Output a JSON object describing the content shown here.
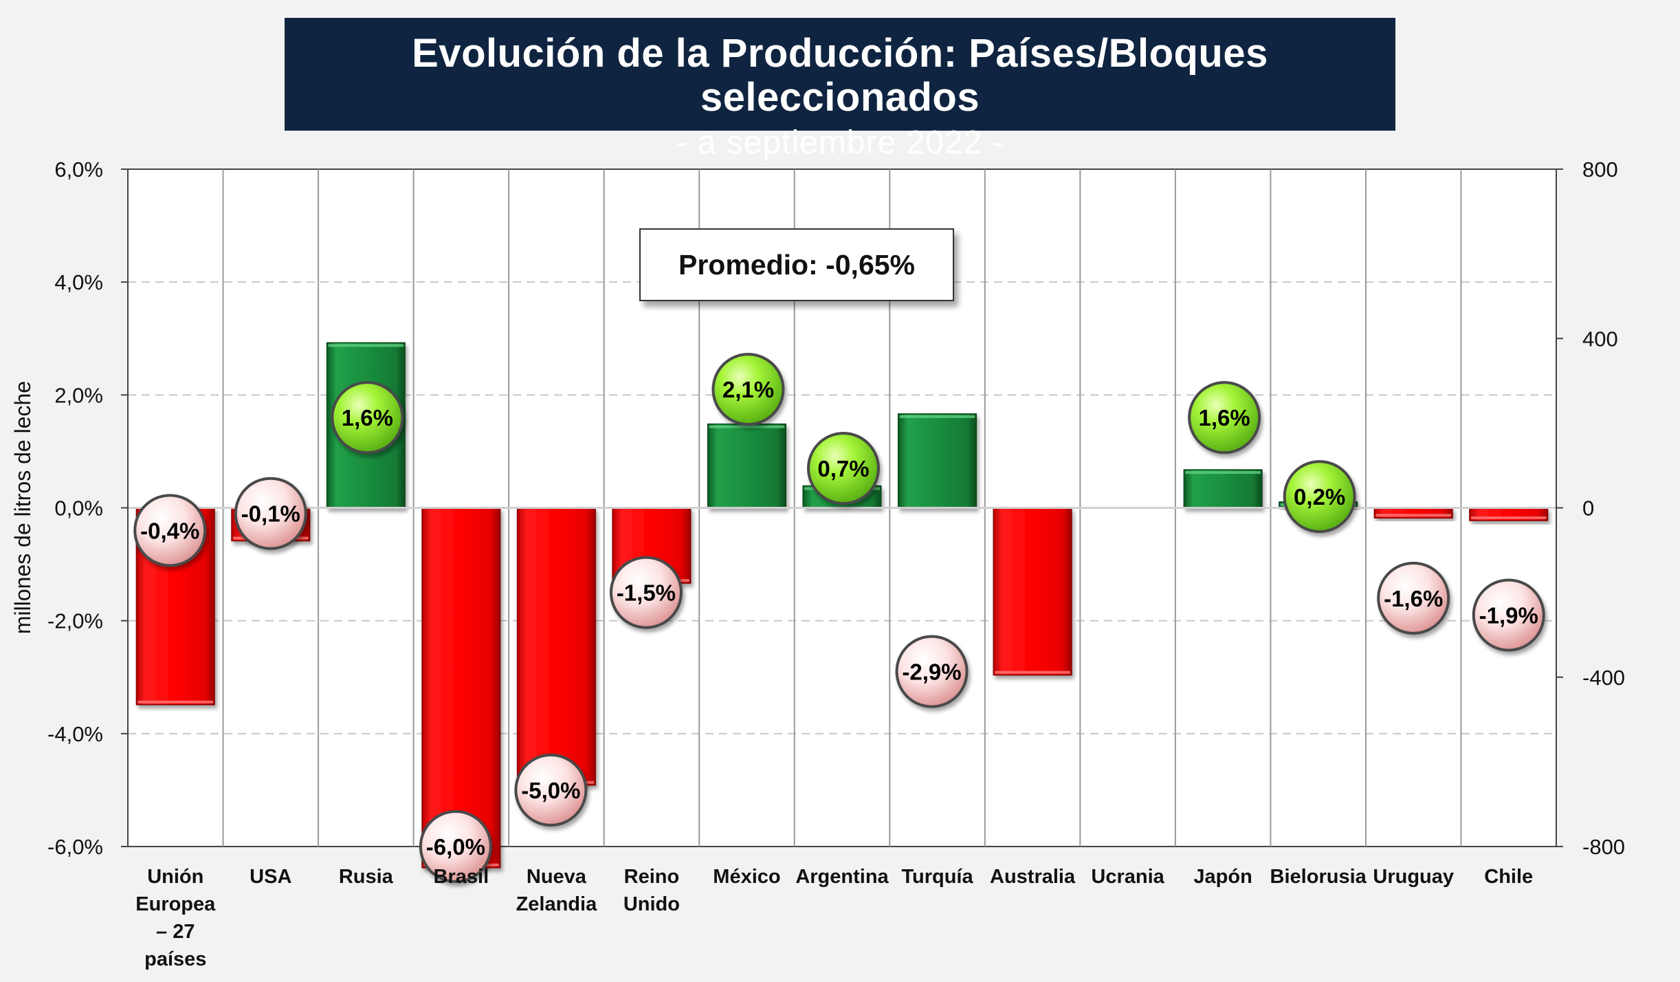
{
  "title": "Evolución de la Producción: Países/Bloques seleccionados",
  "subtitle": "- a septiembre 2022 -",
  "promedio": "Promedio: -0,65%",
  "colors": {
    "positive": "#1a8a3c",
    "negative": "#ee0000",
    "bubble_positive": "#8ef02a",
    "bubble_negative": "#fde0e0",
    "title_bg": "#0f2440"
  },
  "chart_data": {
    "type": "bar",
    "title": "Evolución de la Producción: Países/Bloques seleccionados",
    "subtitle": "- a septiembre 2022 -",
    "ylabel": "millones de litros de leche",
    "y_left_range": [
      -6,
      6
    ],
    "y_left_ticks": [
      "6,0%",
      "4,0%",
      "2,0%",
      "0,0%",
      "-2,0%",
      "-4,0%",
      "-6,0%"
    ],
    "y_left_tick_values": [
      6,
      4,
      2,
      0,
      -2,
      -4,
      -6
    ],
    "y_right_range": [
      -800,
      800
    ],
    "y_right_ticks": [
      "800",
      "400",
      "0",
      "-400",
      "-800"
    ],
    "y_right_tick_values": [
      800,
      400,
      0,
      -400,
      -800
    ],
    "grid": "horizontal dashed",
    "categories": [
      [
        "Unión",
        "Europea",
        "– 27",
        "países"
      ],
      [
        "USA"
      ],
      [
        "Rusia"
      ],
      [
        "Brasil"
      ],
      [
        "Nueva",
        "Zelandia"
      ],
      [
        "Reino",
        "Unido"
      ],
      [
        "México"
      ],
      [
        "Argentina"
      ],
      [
        "Turquía"
      ],
      [
        "Australia"
      ],
      [
        "Ucrania"
      ],
      [
        "Japón"
      ],
      [
        "Bielorusia"
      ],
      [
        "Uruguay"
      ],
      [
        "Chile"
      ]
    ],
    "volume_series": {
      "name": "millones de litros de leche",
      "axis": "right",
      "values": [
        -465,
        -78,
        390,
        -850,
        -655,
        -178,
        198,
        52,
        222,
        -395,
        0,
        90,
        14,
        -24,
        -30
      ]
    },
    "percent_series": {
      "name": "variación %",
      "axis": "left",
      "values": [
        -0.4,
        -0.1,
        1.6,
        -6.0,
        -5.0,
        -1.5,
        2.1,
        0.7,
        -2.9,
        null,
        null,
        1.6,
        0.2,
        -1.6,
        -1.9
      ],
      "labels": [
        "-0,4%",
        "-0,1%",
        "1,6%",
        "-6,0%",
        "-5,0%",
        "-1,5%",
        "2,1%",
        "0,7%",
        "-2,9%",
        null,
        null,
        "1,6%",
        "0,2%",
        "-1,6%",
        "-1,9%"
      ]
    },
    "annotation": "Promedio: -0,65%"
  }
}
